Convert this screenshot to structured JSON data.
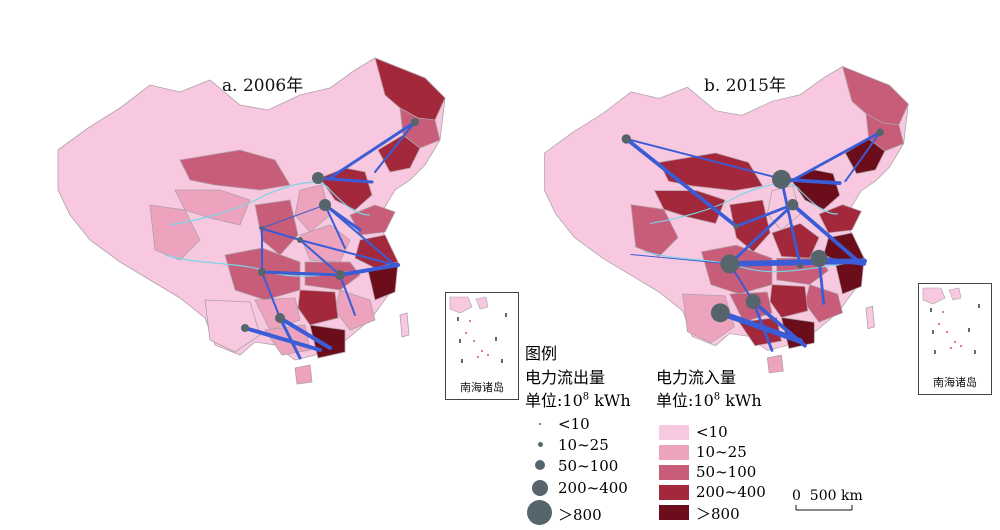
{
  "panels": [
    {
      "title": "a. 2006年",
      "inset_label": "南海诸岛"
    },
    {
      "title": "b. 2015年",
      "inset_label": "南海诸岛"
    }
  ],
  "legend": {
    "title": "图例",
    "outflow": {
      "heading": "电力流出量",
      "unit": "单位:10",
      "unit_sup": "8",
      "unit_tail": " kWh",
      "classes": [
        "<10",
        "10~25",
        "50~100",
        "200~400",
        "＞800"
      ]
    },
    "inflow": {
      "heading": "电力流入量",
      "unit": "单位:10",
      "unit_sup": "8",
      "unit_tail": " kWh",
      "classes": [
        "<10",
        "10~25",
        "50~100",
        "200~400",
        "＞800"
      ],
      "colors": [
        "#f7c8df",
        "#eda3bd",
        "#c75d78",
        "#a3283b",
        "#6b0d1b"
      ]
    }
  },
  "flow_colors": {
    "line": "#3a5cd6",
    "node": "#56646c",
    "river": "#7fd4e6"
  },
  "scale_bar": {
    "label": "0  500 km"
  }
}
